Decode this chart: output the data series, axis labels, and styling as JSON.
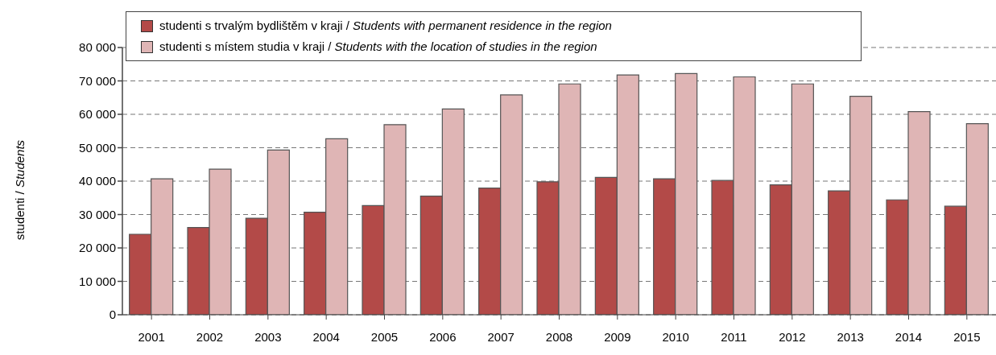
{
  "chart_data": {
    "type": "bar",
    "ylabel": "studenti / Students",
    "categories": [
      "2001",
      "2002",
      "2003",
      "2004",
      "2005",
      "2006",
      "2007",
      "2008",
      "2009",
      "2010",
      "2011",
      "2012",
      "2013",
      "2014",
      "2015"
    ],
    "series": [
      {
        "name": "studenti s trvalým bydlištěm v kraji / Students with permanent residence in the region",
        "color": "#b34a48",
        "values": [
          24100,
          26100,
          28900,
          30700,
          32700,
          35500,
          37900,
          39800,
          41100,
          40700,
          40200,
          38900,
          37100,
          34400,
          32500
        ]
      },
      {
        "name": "studenti s místem studia v kraji / Students with the location of studies in the region",
        "color": "#dfb5b5",
        "values": [
          40700,
          43600,
          49300,
          52700,
          56900,
          61600,
          65800,
          69100,
          71800,
          72200,
          71200,
          69100,
          65400,
          60800,
          57200
        ]
      }
    ],
    "ylim": [
      0,
      80000
    ],
    "yticks": [
      {
        "value": 0,
        "label": "0"
      },
      {
        "value": 10000,
        "label": "10 000"
      },
      {
        "value": 20000,
        "label": "20 000"
      },
      {
        "value": 30000,
        "label": "30 000"
      },
      {
        "value": 40000,
        "label": "40 000"
      },
      {
        "value": 50000,
        "label": "50 000"
      },
      {
        "value": 60000,
        "label": "60 000"
      },
      {
        "value": 70000,
        "label": "70 000"
      },
      {
        "value": 80000,
        "label": "80 000"
      }
    ],
    "grid": "y",
    "legend": "top"
  }
}
